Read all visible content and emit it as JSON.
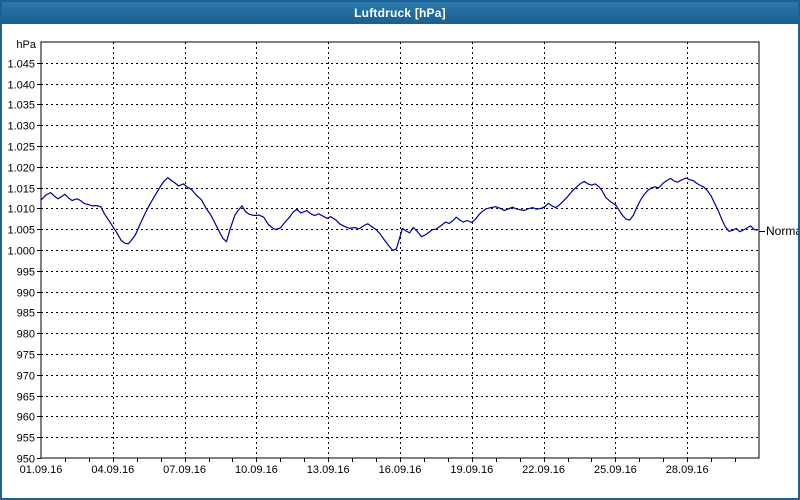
{
  "window": {
    "title": "Luftdruck [hPa]",
    "colors": {
      "title_bar_top": "#2b79ab",
      "title_bar_bottom": "#1b5f90",
      "title_text": "#ffffff",
      "window_border": "#1c6294",
      "content_bg": "#ffffff"
    }
  },
  "chart_data": {
    "type": "line",
    "title": "Luftdruck [hPa]",
    "y_axis": {
      "unit_label": "hPa",
      "min": 950,
      "max": 1050,
      "gridline_step_hpa": 5,
      "tick_values": [
        1045,
        1040,
        1035,
        1030,
        1025,
        1020,
        1015,
        1010,
        1005,
        1000,
        995,
        990,
        985,
        980,
        975,
        970,
        965,
        960,
        955,
        950
      ],
      "tick_labels": [
        "1.045",
        "1.040",
        "1.035",
        "1.030",
        "1.025",
        "1.020",
        "1.015",
        "1.010",
        "1.005",
        "1.000",
        "995",
        "990",
        "985",
        "980",
        "975",
        "970",
        "965",
        "960",
        "955",
        "950"
      ]
    },
    "x_axis": {
      "total_days": 30,
      "minor_tick_every_days": 1,
      "gridline_every_days": 3,
      "label_days": [
        0,
        3,
        6,
        9,
        12,
        15,
        18,
        21,
        24,
        27
      ],
      "tick_labels": [
        "01.09.16",
        "04.09.16",
        "07.09.16",
        "10.09.16",
        "13.09.16",
        "16.09.16",
        "19.09.16",
        "22.09.16",
        "25.09.16",
        "28.09.16"
      ]
    },
    "grid": {
      "style": "dashed",
      "color": "#000000"
    },
    "legend_position": "none",
    "annotations": [
      {
        "text": "Normal",
        "value_hpa": 1004.6,
        "position": "right-edge"
      }
    ],
    "series": [
      {
        "name": "Luftdruck",
        "color": "#0000a0",
        "points": [
          [
            0,
            1012.0
          ],
          [
            0.2,
            1013.2
          ],
          [
            0.4,
            1013.8
          ],
          [
            0.55,
            1013.0
          ],
          [
            0.7,
            1012.3
          ],
          [
            0.85,
            1012.8
          ],
          [
            1.0,
            1013.4
          ],
          [
            1.15,
            1012.5
          ],
          [
            1.3,
            1011.9
          ],
          [
            1.5,
            1012.3
          ],
          [
            1.65,
            1011.9
          ],
          [
            1.8,
            1011.2
          ],
          [
            2.0,
            1010.9
          ],
          [
            2.15,
            1010.6
          ],
          [
            2.3,
            1010.7
          ],
          [
            2.5,
            1010.4
          ],
          [
            2.65,
            1008.7
          ],
          [
            2.85,
            1007.0
          ],
          [
            3.0,
            1005.6
          ],
          [
            3.15,
            1004.3
          ],
          [
            3.35,
            1002.3
          ],
          [
            3.5,
            1001.6
          ],
          [
            3.65,
            1001.5
          ],
          [
            3.8,
            1002.5
          ],
          [
            3.95,
            1003.7
          ],
          [
            4.15,
            1006.3
          ],
          [
            4.35,
            1008.8
          ],
          [
            4.55,
            1011.0
          ],
          [
            4.75,
            1013.0
          ],
          [
            5.0,
            1015.4
          ],
          [
            5.15,
            1016.6
          ],
          [
            5.3,
            1017.4
          ],
          [
            5.45,
            1016.7
          ],
          [
            5.6,
            1016.1
          ],
          [
            5.75,
            1015.4
          ],
          [
            5.95,
            1015.9
          ],
          [
            6.1,
            1015.2
          ],
          [
            6.3,
            1014.5
          ],
          [
            6.5,
            1013.1
          ],
          [
            6.7,
            1012.1
          ],
          [
            6.9,
            1010.0
          ],
          [
            7.1,
            1008.4
          ],
          [
            7.25,
            1006.7
          ],
          [
            7.45,
            1004.4
          ],
          [
            7.6,
            1002.8
          ],
          [
            7.75,
            1002.0
          ],
          [
            7.9,
            1005.0
          ],
          [
            8.1,
            1008.4
          ],
          [
            8.25,
            1009.6
          ],
          [
            8.4,
            1010.6
          ],
          [
            8.55,
            1009.2
          ],
          [
            8.7,
            1008.6
          ],
          [
            8.9,
            1008.3
          ],
          [
            9.1,
            1008.4
          ],
          [
            9.3,
            1007.9
          ],
          [
            9.5,
            1006.1
          ],
          [
            9.65,
            1005.4
          ],
          [
            9.8,
            1004.9
          ],
          [
            10.0,
            1005.3
          ],
          [
            10.2,
            1006.7
          ],
          [
            10.4,
            1008.0
          ],
          [
            10.55,
            1009.2
          ],
          [
            10.7,
            1009.8
          ],
          [
            10.85,
            1008.9
          ],
          [
            11.0,
            1009.2
          ],
          [
            11.1,
            1009.5
          ],
          [
            11.3,
            1008.6
          ],
          [
            11.45,
            1008.3
          ],
          [
            11.6,
            1008.7
          ],
          [
            11.8,
            1008.1
          ],
          [
            11.95,
            1007.6
          ],
          [
            12.1,
            1008.0
          ],
          [
            12.3,
            1007.3
          ],
          [
            12.5,
            1006.2
          ],
          [
            12.7,
            1005.6
          ],
          [
            12.9,
            1005.2
          ],
          [
            13.1,
            1005.4
          ],
          [
            13.3,
            1005.1
          ],
          [
            13.5,
            1005.9
          ],
          [
            13.65,
            1006.3
          ],
          [
            13.8,
            1005.7
          ],
          [
            14.0,
            1004.9
          ],
          [
            14.15,
            1004.0
          ],
          [
            14.35,
            1002.4
          ],
          [
            14.55,
            1000.9
          ],
          [
            14.7,
            999.9
          ],
          [
            14.85,
            1000.3
          ],
          [
            14.95,
            1002.2
          ],
          [
            15.1,
            1005.2
          ],
          [
            15.25,
            1004.6
          ],
          [
            15.4,
            1004.1
          ],
          [
            15.55,
            1005.4
          ],
          [
            15.7,
            1004.6
          ],
          [
            15.9,
            1003.2
          ],
          [
            16.05,
            1003.6
          ],
          [
            16.2,
            1004.2
          ],
          [
            16.35,
            1004.9
          ],
          [
            16.5,
            1005.0
          ],
          [
            16.7,
            1005.8
          ],
          [
            16.9,
            1006.7
          ],
          [
            17.05,
            1006.4
          ],
          [
            17.2,
            1007.0
          ],
          [
            17.35,
            1007.9
          ],
          [
            17.5,
            1007.2
          ],
          [
            17.65,
            1006.7
          ],
          [
            17.8,
            1007.1
          ],
          [
            18.0,
            1006.6
          ],
          [
            18.15,
            1007.4
          ],
          [
            18.3,
            1008.5
          ],
          [
            18.45,
            1009.3
          ],
          [
            18.6,
            1009.9
          ],
          [
            18.8,
            1010.2
          ],
          [
            19.0,
            1010.4
          ],
          [
            19.2,
            1010.0
          ],
          [
            19.35,
            1009.5
          ],
          [
            19.5,
            1009.8
          ],
          [
            19.7,
            1010.3
          ],
          [
            19.85,
            1009.9
          ],
          [
            20.0,
            1009.7
          ],
          [
            20.2,
            1009.5
          ],
          [
            20.35,
            1009.9
          ],
          [
            20.55,
            1010.2
          ],
          [
            20.7,
            1009.8
          ],
          [
            20.9,
            1010.0
          ],
          [
            21.05,
            1010.4
          ],
          [
            21.2,
            1011.2
          ],
          [
            21.35,
            1010.6
          ],
          [
            21.5,
            1010.2
          ],
          [
            21.65,
            1010.8
          ],
          [
            21.8,
            1011.6
          ],
          [
            22.0,
            1012.8
          ],
          [
            22.2,
            1014.2
          ],
          [
            22.4,
            1015.3
          ],
          [
            22.55,
            1016.0
          ],
          [
            22.7,
            1016.5
          ],
          [
            22.85,
            1015.9
          ],
          [
            23.0,
            1015.6
          ],
          [
            23.15,
            1015.9
          ],
          [
            23.3,
            1015.3
          ],
          [
            23.45,
            1014.2
          ],
          [
            23.6,
            1012.6
          ],
          [
            23.8,
            1011.6
          ],
          [
            24.0,
            1010.9
          ],
          [
            24.15,
            1009.6
          ],
          [
            24.3,
            1008.3
          ],
          [
            24.45,
            1007.4
          ],
          [
            24.6,
            1007.2
          ],
          [
            24.75,
            1008.4
          ],
          [
            24.9,
            1010.3
          ],
          [
            25.05,
            1012.0
          ],
          [
            25.2,
            1013.3
          ],
          [
            25.35,
            1014.3
          ],
          [
            25.5,
            1014.9
          ],
          [
            25.65,
            1015.2
          ],
          [
            25.8,
            1014.9
          ],
          [
            26.0,
            1016.1
          ],
          [
            26.15,
            1016.7
          ],
          [
            26.3,
            1017.2
          ],
          [
            26.45,
            1016.6
          ],
          [
            26.6,
            1016.3
          ],
          [
            26.75,
            1016.8
          ],
          [
            26.95,
            1017.3
          ],
          [
            27.1,
            1016.9
          ],
          [
            27.25,
            1016.7
          ],
          [
            27.4,
            1016.0
          ],
          [
            27.55,
            1015.5
          ],
          [
            27.7,
            1015.1
          ],
          [
            27.85,
            1014.2
          ],
          [
            28.0,
            1013.0
          ],
          [
            28.15,
            1011.2
          ],
          [
            28.3,
            1009.4
          ],
          [
            28.45,
            1007.3
          ],
          [
            28.6,
            1005.5
          ],
          [
            28.75,
            1004.5
          ],
          [
            28.9,
            1004.7
          ],
          [
            29.05,
            1005.2
          ],
          [
            29.2,
            1004.4
          ],
          [
            29.35,
            1004.8
          ],
          [
            29.5,
            1005.3
          ],
          [
            29.65,
            1005.8
          ],
          [
            29.8,
            1004.9
          ],
          [
            29.95,
            1004.8
          ]
        ]
      }
    ]
  }
}
